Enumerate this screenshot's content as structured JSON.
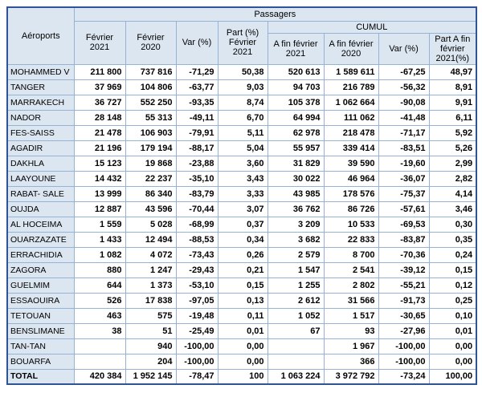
{
  "colors": {
    "header_bg": "#dce6f1",
    "grid_border": "#95b3d7",
    "outer_border": "#2f5496",
    "text": "#000000"
  },
  "chart_data": {
    "type": "table",
    "header": {
      "airports": "Aéroports",
      "passengers_group": "Passagers",
      "cumul_group": "CUMUL",
      "feb_2021": "Février 2021",
      "feb_2020": "Février 2020",
      "var_pct": "Var (%)",
      "part_feb_2021": "Part (%) Février 2021",
      "cumul_2021": "A fin février 2021",
      "cumul_2020": "A fin février 2020",
      "cumul_var": "Var (%)",
      "cumul_part": "Part A fin février 2021(%)"
    },
    "columns": [
      "Aéroports",
      "Février 2021",
      "Février 2020",
      "Var (%)",
      "Part (%) Février 2021",
      "A fin février 2021",
      "A fin février 2020",
      "Var (%)",
      "Part A fin février 2021(%)"
    ],
    "rows": [
      {
        "airport": "MOHAMMED V",
        "values": [
          "211 800",
          "737 816",
          "-71,29",
          "50,38",
          "520 613",
          "1 589 611",
          "-67,25",
          "48,97"
        ]
      },
      {
        "airport": "TANGER",
        "values": [
          "37 969",
          "104 806",
          "-63,77",
          "9,03",
          "94 703",
          "216 789",
          "-56,32",
          "8,91"
        ]
      },
      {
        "airport": "MARRAKECH",
        "values": [
          "36 727",
          "552 250",
          "-93,35",
          "8,74",
          "105 378",
          "1 062 664",
          "-90,08",
          "9,91"
        ]
      },
      {
        "airport": "NADOR",
        "values": [
          "28 148",
          "55 313",
          "-49,11",
          "6,70",
          "64 994",
          "111 062",
          "-41,48",
          "6,11"
        ]
      },
      {
        "airport": "FES-SAISS",
        "values": [
          "21 478",
          "106 903",
          "-79,91",
          "5,11",
          "62 978",
          "218 478",
          "-71,17",
          "5,92"
        ]
      },
      {
        "airport": "AGADIR",
        "values": [
          "21 196",
          "179 194",
          "-88,17",
          "5,04",
          "55 957",
          "339 414",
          "-83,51",
          "5,26"
        ]
      },
      {
        "airport": "DAKHLA",
        "values": [
          "15 123",
          "19 868",
          "-23,88",
          "3,60",
          "31 829",
          "39 590",
          "-19,60",
          "2,99"
        ]
      },
      {
        "airport": "LAAYOUNE",
        "values": [
          "14 432",
          "22 237",
          "-35,10",
          "3,43",
          "30 022",
          "46 964",
          "-36,07",
          "2,82"
        ]
      },
      {
        "airport": "RABAT- SALE",
        "values": [
          "13 999",
          "86 340",
          "-83,79",
          "3,33",
          "43 985",
          "178 576",
          "-75,37",
          "4,14"
        ]
      },
      {
        "airport": "OUJDA",
        "values": [
          "12 887",
          "43 596",
          "-70,44",
          "3,07",
          "36 762",
          "86 726",
          "-57,61",
          "3,46"
        ]
      },
      {
        "airport": "AL HOCEIMA",
        "values": [
          "1 559",
          "5 028",
          "-68,99",
          "0,37",
          "3 209",
          "10 533",
          "-69,53",
          "0,30"
        ]
      },
      {
        "airport": "OUARZAZATE",
        "values": [
          "1 433",
          "12 494",
          "-88,53",
          "0,34",
          "3 682",
          "22 833",
          "-83,87",
          "0,35"
        ]
      },
      {
        "airport": "ERRACHIDIA",
        "values": [
          "1 082",
          "4 072",
          "-73,43",
          "0,26",
          "2 579",
          "8 700",
          "-70,36",
          "0,24"
        ]
      },
      {
        "airport": "ZAGORA",
        "values": [
          "880",
          "1 247",
          "-29,43",
          "0,21",
          "1 547",
          "2 541",
          "-39,12",
          "0,15"
        ]
      },
      {
        "airport": "GUELMIM",
        "values": [
          "644",
          "1 373",
          "-53,10",
          "0,15",
          "1 255",
          "2 802",
          "-55,21",
          "0,12"
        ]
      },
      {
        "airport": "ESSAOUIRA",
        "values": [
          "526",
          "17 838",
          "-97,05",
          "0,13",
          "2 612",
          "31 566",
          "-91,73",
          "0,25"
        ]
      },
      {
        "airport": "TETOUAN",
        "values": [
          "463",
          "575",
          "-19,48",
          "0,11",
          "1 052",
          "1 517",
          "-30,65",
          "0,10"
        ]
      },
      {
        "airport": "BENSLIMANE",
        "values": [
          "38",
          "51",
          "-25,49",
          "0,01",
          "67",
          "93",
          "-27,96",
          "0,01"
        ]
      },
      {
        "airport": "TAN-TAN",
        "values": [
          "",
          "940",
          "-100,00",
          "0,00",
          "",
          "1 967",
          "-100,00",
          "0,00"
        ]
      },
      {
        "airport": "BOUARFA",
        "values": [
          "",
          "204",
          "-100,00",
          "0,00",
          "",
          "366",
          "-100,00",
          "0,00"
        ]
      }
    ],
    "total_row": {
      "airport": "TOTAL",
      "values": [
        "420 384",
        "1 952 145",
        "-78,47",
        "100",
        "1 063 224",
        "3 972 792",
        "-73,24",
        "100,00"
      ]
    }
  }
}
